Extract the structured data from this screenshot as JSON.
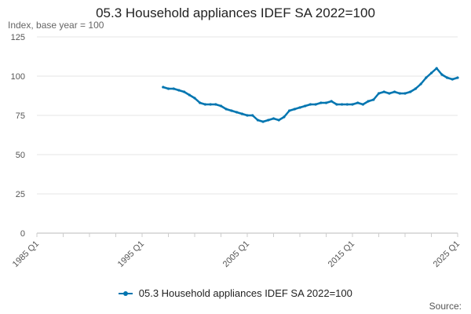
{
  "chart_data": {
    "type": "line",
    "title": "05.3 Household appliances IDEF SA 2022=100",
    "ylabel": "Index, base year = 100",
    "ylim": [
      0,
      125
    ],
    "yticks": [
      "0",
      "25",
      "50",
      "75",
      "100",
      "125"
    ],
    "xlim": [
      "1985 Q1",
      "2025 Q1"
    ],
    "xticks": [
      "1985 Q1",
      "1995 Q1",
      "2005 Q1",
      "2015 Q1",
      "2025 Q1"
    ],
    "grid": "horizontal",
    "legend_position": "bottom",
    "series": [
      {
        "name": "05.3 Household appliances IDEF SA 2022=100",
        "color": "#0075b0",
        "x": [
          "1997 Q1",
          "1997 Q3",
          "1998 Q1",
          "1998 Q3",
          "1999 Q1",
          "1999 Q3",
          "2000 Q1",
          "2000 Q3",
          "2001 Q1",
          "2001 Q3",
          "2002 Q1",
          "2002 Q3",
          "2003 Q1",
          "2003 Q3",
          "2004 Q1",
          "2004 Q3",
          "2005 Q1",
          "2005 Q3",
          "2006 Q1",
          "2006 Q3",
          "2007 Q1",
          "2007 Q3",
          "2008 Q1",
          "2008 Q3",
          "2009 Q1",
          "2009 Q3",
          "2010 Q1",
          "2010 Q3",
          "2011 Q1",
          "2011 Q3",
          "2012 Q1",
          "2012 Q3",
          "2013 Q1",
          "2013 Q3",
          "2014 Q1",
          "2014 Q3",
          "2015 Q1",
          "2015 Q3",
          "2016 Q1",
          "2016 Q3",
          "2017 Q1",
          "2017 Q3",
          "2018 Q1",
          "2018 Q3",
          "2019 Q1",
          "2019 Q3",
          "2020 Q1",
          "2020 Q3",
          "2021 Q1",
          "2021 Q3",
          "2022 Q1",
          "2022 Q3",
          "2023 Q1",
          "2023 Q3",
          "2024 Q1",
          "2024 Q3",
          "2025 Q1"
        ],
        "values": [
          93,
          92,
          92,
          91,
          90,
          88,
          86,
          83,
          82,
          82,
          82,
          81,
          79,
          78,
          77,
          76,
          75,
          75,
          72,
          71,
          72,
          73,
          72,
          74,
          78,
          79,
          80,
          81,
          82,
          82,
          83,
          83,
          84,
          82,
          82,
          82,
          82,
          83,
          82,
          84,
          85,
          89,
          90,
          89,
          90,
          89,
          89,
          90,
          92,
          95,
          99,
          102,
          105,
          101,
          99,
          98,
          99
        ]
      }
    ],
    "legend_label": "05.3 Household appliances IDEF SA 2022=100",
    "source_label": "Source:"
  }
}
